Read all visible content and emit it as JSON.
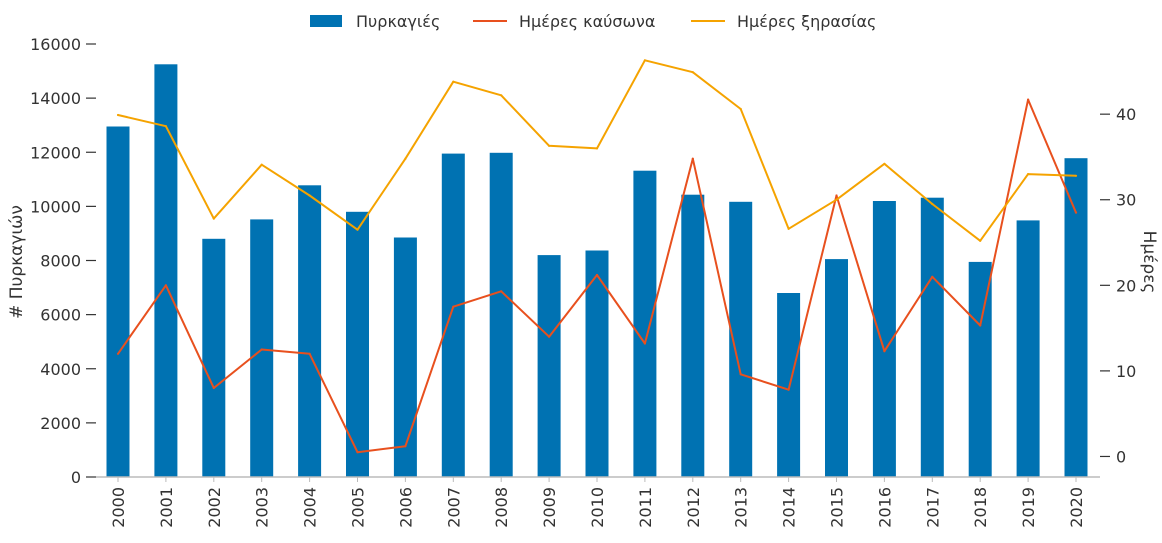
{
  "chart_data": {
    "type": "bar",
    "categories": [
      "2000",
      "2001",
      "2002",
      "2003",
      "2004",
      "2005",
      "2006",
      "2007",
      "2008",
      "2009",
      "2010",
      "2011",
      "2012",
      "2013",
      "2014",
      "2015",
      "2016",
      "2017",
      "2018",
      "2019",
      "2020"
    ],
    "series": [
      {
        "name": "Πυρκαγιές",
        "type": "bar",
        "axis": "left",
        "color": "#0072b2",
        "values": [
          12950,
          15250,
          8800,
          9520,
          10780,
          9800,
          8850,
          11950,
          11980,
          8200,
          8370,
          11320,
          10430,
          10170,
          6800,
          8050,
          10200,
          10320,
          7950,
          9480,
          11780
        ]
      },
      {
        "name": "Ημέρες καύσωνα",
        "type": "line",
        "axis": "right",
        "color": "#e8501e",
        "values": [
          12,
          20,
          8,
          12.5,
          12,
          0.5,
          1.2,
          17.5,
          19.3,
          14,
          21.2,
          13.2,
          34.8,
          9.6,
          7.8,
          30.5,
          12.3,
          21,
          15.3,
          41.7,
          28.5
        ]
      },
      {
        "name": "Ημέρες ξηρασίας",
        "type": "line",
        "axis": "right",
        "color": "#f5a300",
        "values": [
          39.9,
          38.6,
          27.8,
          34.1,
          30.5,
          26.5,
          34.8,
          43.8,
          42.2,
          36.3,
          36,
          46.3,
          44.9,
          40.6,
          26.6,
          30,
          34.2,
          29.5,
          25.2,
          33,
          32.8
        ]
      }
    ],
    "ylabel": "# Πυρκαγιών",
    "ylim": [
      0,
      16000
    ],
    "yticks": [
      "0",
      "2000",
      "4000",
      "6000",
      "8000",
      "10000",
      "12000",
      "14000",
      "16000"
    ],
    "y2label": "Ημέρες",
    "y2lim": [
      -2.4,
      48.2
    ],
    "y2ticks": [
      "0",
      "10",
      "20",
      "30",
      "40"
    ],
    "legend_position": "top-center",
    "grid": false
  }
}
